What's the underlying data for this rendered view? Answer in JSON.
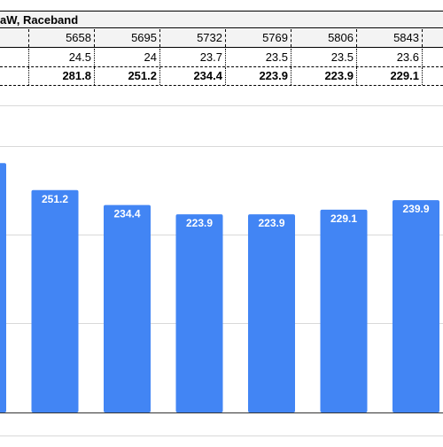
{
  "table": {
    "title": "aW, Raceband",
    "frequencies": [
      "5658",
      "5695",
      "5732",
      "5769",
      "5806",
      "5843"
    ],
    "row_values": [
      "24.5",
      "24",
      "23.7",
      "23.5",
      "23.5",
      "23.6"
    ],
    "row_power": [
      "281.8",
      "251.2",
      "234.4",
      "223.9",
      "223.9",
      "229.1"
    ]
  },
  "chart_data": {
    "type": "bar",
    "categories": [
      "",
      "",
      "",
      "",
      "",
      "",
      ""
    ],
    "values": [
      281.8,
      251.2,
      234.4,
      223.9,
      223.9,
      229.1,
      239.9
    ],
    "data_labels": [
      "",
      "251.2",
      "234.4",
      "223.9",
      "223.9",
      "229.1",
      "239.9"
    ],
    "color": "#4285f4",
    "ylim": [
      0,
      300
    ],
    "grid": true
  }
}
